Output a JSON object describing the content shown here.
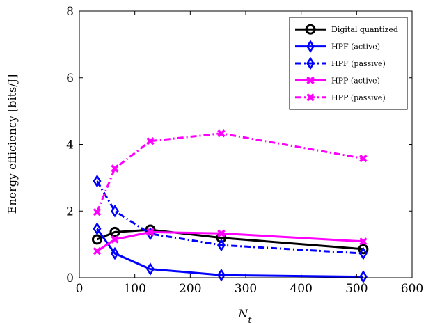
{
  "chart_data": {
    "type": "line",
    "xlabel_base": "N",
    "xlabel_sub": "t",
    "ylabel": "Energy efficiency [bits/J]",
    "xlim": [
      0,
      600
    ],
    "ylim": [
      0,
      8
    ],
    "xticks": [
      0,
      100,
      200,
      300,
      400,
      500,
      600
    ],
    "yticks": [
      0,
      2,
      4,
      6,
      8
    ],
    "grid": false,
    "legend_position": "top-right",
    "series": [
      {
        "name": "Digital quantized",
        "color": "#000000",
        "dash": "solid",
        "marker": "circle",
        "x": [
          32,
          64,
          128,
          256,
          512
        ],
        "y": [
          1.15,
          1.37,
          1.44,
          1.2,
          0.86
        ]
      },
      {
        "name": "HPF (active)",
        "color": "#0000ff",
        "dash": "solid",
        "marker": "diamond",
        "x": [
          32,
          64,
          128,
          256,
          512
        ],
        "y": [
          1.47,
          0.73,
          0.26,
          0.08,
          0.03
        ]
      },
      {
        "name": "HPF (passive)",
        "color": "#0000ff",
        "dash": "dashdot",
        "marker": "diamond",
        "x": [
          32,
          64,
          128,
          256,
          512
        ],
        "y": [
          2.9,
          2.0,
          1.32,
          0.98,
          0.73
        ]
      },
      {
        "name": "HPP (active)",
        "color": "#ff00ff",
        "dash": "solid",
        "marker": "x",
        "x": [
          32,
          64,
          128,
          256,
          512
        ],
        "y": [
          0.8,
          1.15,
          1.37,
          1.33,
          1.09
        ]
      },
      {
        "name": "HPP (passive)",
        "color": "#ff00ff",
        "dash": "dashdot",
        "marker": "x",
        "x": [
          32,
          64,
          128,
          256,
          512
        ],
        "y": [
          1.97,
          3.28,
          4.1,
          4.33,
          3.58
        ]
      }
    ]
  }
}
